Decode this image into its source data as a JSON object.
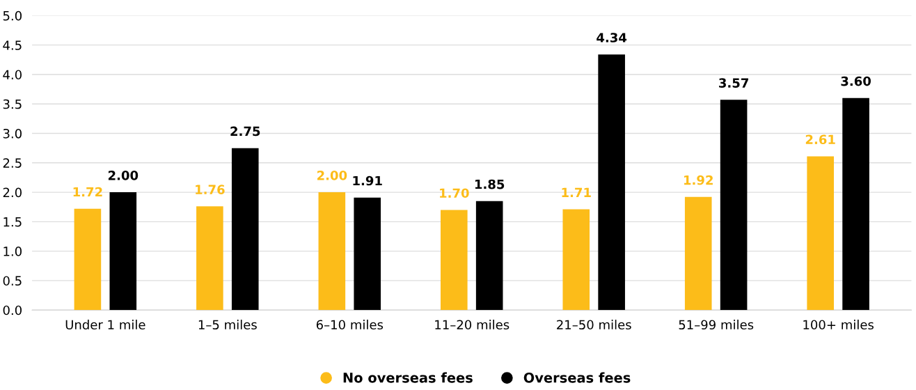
{
  "chart_data": {
    "type": "bar",
    "categories": [
      "Under 1 mile",
      "1–5 miles",
      "6–10 miles",
      "11–20 miles",
      "21–50 miles",
      "51–99 miles",
      "100+ miles"
    ],
    "series": [
      {
        "name": "No overseas fees",
        "color": "#fcbc19",
        "values": [
          1.72,
          1.76,
          2.0,
          1.7,
          1.71,
          1.92,
          2.61
        ],
        "value_labels": [
          "1.72",
          "1.76",
          "2.00",
          "1.70",
          "1.71",
          "1.92",
          "2.61"
        ]
      },
      {
        "name": "Overseas fees",
        "color": "#000000",
        "values": [
          2.0,
          2.75,
          1.91,
          1.85,
          4.34,
          3.57,
          3.6
        ],
        "value_labels": [
          "2.00",
          "2.75",
          "1.91",
          "1.85",
          "4.34",
          "3.57",
          "3.60"
        ]
      }
    ],
    "ylim": [
      0,
      5
    ],
    "yticks": [
      {
        "value": 0,
        "label": "0.0"
      },
      {
        "value": 0.5,
        "label": "0.5"
      },
      {
        "value": 1,
        "label": "1.0"
      },
      {
        "value": 1.5,
        "label": "1.5"
      },
      {
        "value": 2,
        "label": "2.0"
      },
      {
        "value": 2.5,
        "label": "2.5"
      },
      {
        "value": 3,
        "label": "3.0"
      },
      {
        "value": 3.5,
        "label": "3.5"
      },
      {
        "value": 4,
        "label": "4.0"
      },
      {
        "value": 4.5,
        "label": "4.5"
      },
      {
        "value": 5,
        "label": "5.0"
      }
    ],
    "grid": "y",
    "legend": "bottom"
  }
}
